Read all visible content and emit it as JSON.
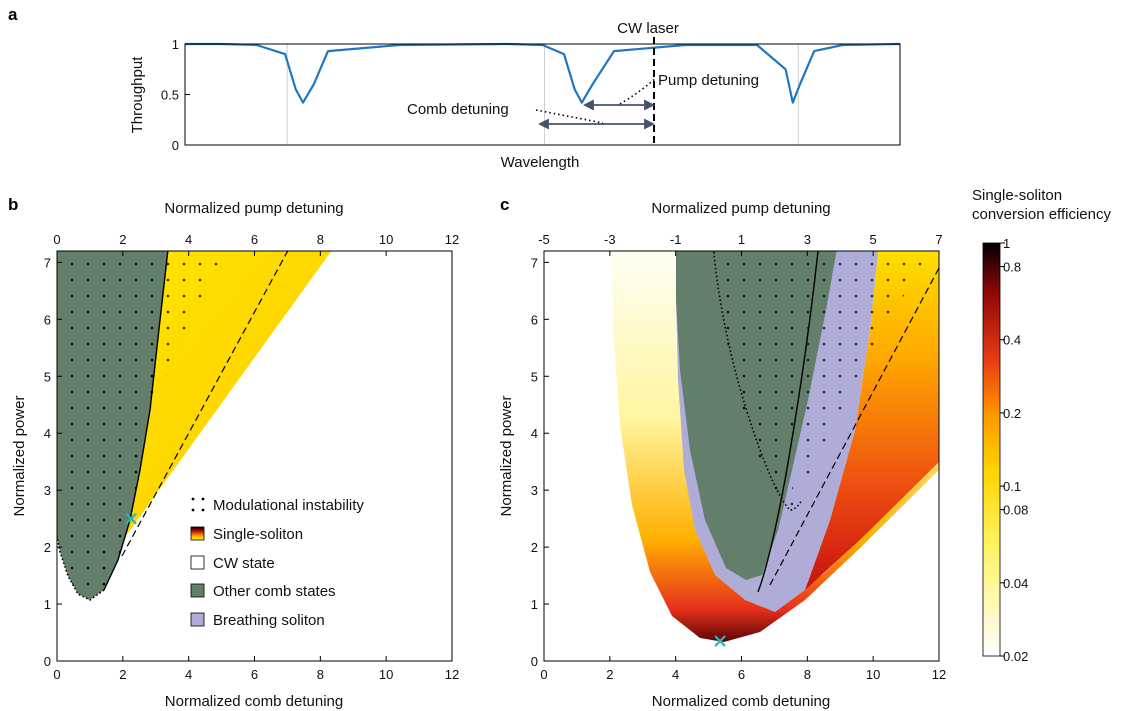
{
  "panels": {
    "a": "a",
    "b": "b",
    "c": "c"
  },
  "colors": {
    "throughput_line": "#1f77c4",
    "other_comb": "#647e6c",
    "breathing": "#b0acd8",
    "guide_line": "#44556a",
    "marker": "#2ab6b6"
  },
  "chart_data": [
    {
      "panel": "a",
      "type": "line",
      "title": "",
      "xlabel": "Wavelength",
      "ylabel": "Throughput",
      "yticks": [
        "0",
        "0.5",
        "1"
      ],
      "ylim": [
        0,
        1
      ],
      "series": [
        {
          "x": [
            0,
            0.05,
            0.1,
            0.14,
            0.155,
            0.165,
            0.18,
            0.2,
            0.3,
            0.45,
            0.5,
            0.53,
            0.545,
            0.555,
            0.57,
            0.6,
            0.7,
            0.8,
            0.84,
            0.85,
            0.86,
            0.88,
            0.92,
            1.0
          ],
          "y": [
            1,
            1,
            0.99,
            0.9,
            0.55,
            0.42,
            0.6,
            0.93,
            0.99,
            1,
            0.99,
            0.9,
            0.55,
            0.42,
            0.6,
            0.93,
            0.99,
            0.99,
            0.75,
            0.42,
            0.6,
            0.93,
            0.99,
            1
          ]
        }
      ],
      "annotations": {
        "cw_laser": "CW laser",
        "pump_detuning": "Pump detuning",
        "comb_detuning": "Comb detuning"
      }
    },
    {
      "panel": "b",
      "type": "area",
      "title": "",
      "xlabel": "Normalized comb detuning",
      "x2label": "Normalized pump detuning",
      "ylabel": "Normalized power",
      "xlim": [
        0,
        12
      ],
      "ylim": [
        0,
        7.2
      ],
      "xticks": [
        "0",
        "2",
        "4",
        "6",
        "8",
        "10",
        "12"
      ],
      "x2ticks": [
        "0",
        "2",
        "4",
        "6",
        "8",
        "10",
        "12"
      ],
      "yticks": [
        "0",
        "1",
        "2",
        "3",
        "4",
        "5",
        "6",
        "7"
      ],
      "marker_point": {
        "x": 2.25,
        "y": 2.5
      },
      "legend": {
        "placement": "lower-right",
        "items": [
          {
            "label": "Modulational instability"
          },
          {
            "label": "Single-soliton"
          },
          {
            "label": "CW state"
          },
          {
            "label": "Other comb states"
          },
          {
            "label": "Breathing soliton"
          }
        ]
      }
    },
    {
      "panel": "c",
      "type": "heatmap",
      "title": "",
      "xlabel": "Normalized comb detuning",
      "x2label": "Normalized pump detuning",
      "ylabel": "Normalized power",
      "xlim": [
        0,
        12
      ],
      "ylim": [
        0,
        7.2
      ],
      "xticks": [
        "0",
        "2",
        "4",
        "6",
        "8",
        "10",
        "12"
      ],
      "x2ticks": [
        "-5",
        "-3",
        "-1",
        "1",
        "3",
        "5",
        "7"
      ],
      "yticks": [
        "0",
        "1",
        "2",
        "3",
        "4",
        "5",
        "6",
        "7"
      ],
      "marker_point": {
        "x": 5.35,
        "y": 0.35
      },
      "colorbar": {
        "title_line1": "Single-soliton",
        "title_line2": "conversion efficiency",
        "scale": "log",
        "range": [
          0.02,
          1
        ],
        "ticks": [
          "1",
          "0.8",
          "0.4",
          "0.2",
          "0.1",
          "0.08",
          "0.04",
          "0.02"
        ]
      }
    }
  ]
}
